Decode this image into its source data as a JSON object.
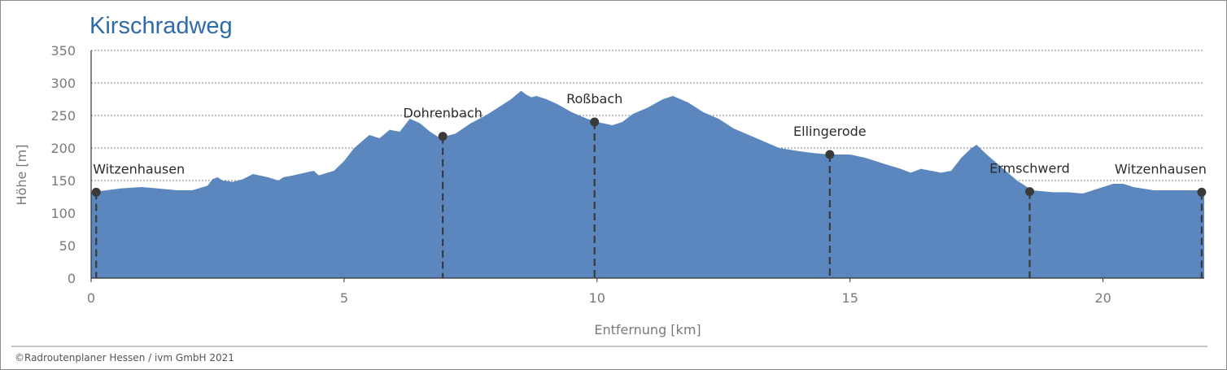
{
  "chart_data": {
    "type": "area",
    "title": "Kirschradweg",
    "xlabel": "Entfernung [km]",
    "ylabel": "Höhe [m]",
    "xlim": [
      0,
      22
    ],
    "ylim": [
      0,
      350
    ],
    "x_ticks": [
      0,
      5,
      10,
      15,
      20
    ],
    "y_ticks": [
      0,
      50,
      100,
      150,
      200,
      250,
      300,
      350
    ],
    "grid": "horizontal dashed",
    "colors": {
      "area": "#5b87be",
      "title": "#2e6ca8",
      "marker": "#3a3a3a"
    },
    "x": [
      0,
      0.3,
      0.6,
      1.0,
      1.3,
      1.7,
      2.0,
      2.3,
      2.4,
      2.5,
      2.6,
      2.8,
      3.0,
      3.2,
      3.5,
      3.7,
      3.8,
      4.0,
      4.4,
      4.5,
      4.8,
      5.0,
      5.2,
      5.5,
      5.7,
      5.9,
      6.1,
      6.3,
      6.5,
      6.7,
      6.9,
      7.0,
      7.2,
      7.5,
      7.8,
      8.0,
      8.3,
      8.5,
      8.6,
      8.7,
      8.8,
      9.0,
      9.2,
      9.5,
      9.8,
      10.0,
      10.3,
      10.5,
      10.7,
      11.0,
      11.3,
      11.5,
      11.8,
      12.1,
      12.4,
      12.7,
      13.0,
      13.3,
      13.6,
      14.0,
      14.3,
      14.6,
      15.0,
      15.3,
      15.7,
      16.0,
      16.2,
      16.4,
      16.8,
      17.0,
      17.2,
      17.4,
      17.5,
      17.7,
      18.0,
      18.3,
      18.6,
      19.0,
      19.3,
      19.6,
      20.0,
      20.2,
      20.4,
      20.6,
      21.0,
      21.4,
      21.7,
      22.0
    ],
    "values": [
      132,
      135,
      138,
      140,
      138,
      135,
      135,
      142,
      152,
      155,
      150,
      148,
      152,
      160,
      155,
      150,
      155,
      158,
      165,
      158,
      165,
      180,
      200,
      220,
      215,
      228,
      225,
      245,
      238,
      225,
      215,
      218,
      222,
      238,
      250,
      260,
      275,
      288,
      282,
      278,
      280,
      275,
      268,
      255,
      245,
      240,
      235,
      240,
      252,
      262,
      275,
      280,
      270,
      255,
      245,
      230,
      220,
      210,
      200,
      195,
      192,
      190,
      190,
      185,
      175,
      168,
      162,
      168,
      162,
      165,
      185,
      200,
      205,
      190,
      170,
      150,
      135,
      132,
      132,
      130,
      140,
      145,
      145,
      140,
      135,
      135,
      135,
      135
    ],
    "waypoints": [
      {
        "name": "Witzenhausen",
        "x": 0.1,
        "y": 132
      },
      {
        "name": "Dohrenbach",
        "x": 6.95,
        "y": 218
      },
      {
        "name": "Roßbach",
        "x": 9.95,
        "y": 240
      },
      {
        "name": "Ellingerode",
        "x": 14.6,
        "y": 190
      },
      {
        "name": "Ermschwerd",
        "x": 18.55,
        "y": 133
      },
      {
        "name": "Witzenhausen",
        "x": 21.95,
        "y": 132
      }
    ]
  },
  "footer": {
    "copyright": "©Radroutenplaner Hessen / ivm GmbH 2021"
  }
}
